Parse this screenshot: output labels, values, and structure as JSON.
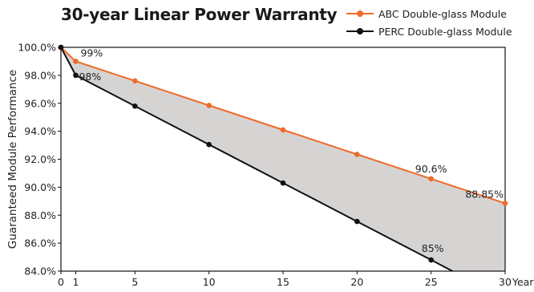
{
  "chart_data": {
    "type": "line",
    "title": "30-year Linear Power Warranty",
    "ylabel": "Guaranteed Module Performance",
    "xlabel": "Year",
    "xlim": [
      0,
      30
    ],
    "ylim": [
      84.0,
      100.0
    ],
    "x_ticks": [
      "0",
      "1",
      "5",
      "10",
      "15",
      "20",
      "25",
      "30"
    ],
    "y_ticks": [
      "84.0%",
      "86.0%",
      "88.0%",
      "90.0%",
      "92.0%",
      "94.0%",
      "96.0%",
      "98.0%",
      "100.0%"
    ],
    "x_tick_values": [
      0,
      1,
      5,
      10,
      15,
      20,
      25,
      30
    ],
    "y_tick_values": [
      84,
      86,
      88,
      90,
      92,
      94,
      96,
      98,
      100
    ],
    "grid": false,
    "legend_position": "top-right",
    "shaded_between_series": true,
    "shade_color": "#d6d3d3",
    "series": [
      {
        "name": "ABC Double-glass Module",
        "color": "#ef6b2a",
        "x": [
          0,
          1,
          5,
          10,
          15,
          20,
          25,
          30
        ],
        "values": [
          100.0,
          99.0,
          97.6,
          95.85,
          94.1,
          92.35,
          90.6,
          88.85
        ]
      },
      {
        "name": "PERC Double-glass Module",
        "color": "#111111",
        "x": [
          0,
          1,
          5,
          10,
          15,
          20,
          25,
          26.9
        ],
        "values": [
          100.0,
          98.0,
          95.8,
          93.05,
          90.3,
          87.55,
          84.8,
          83.75
        ]
      }
    ],
    "annotations": [
      {
        "text": "99%",
        "x": 1,
        "y": 99.0,
        "series": 0
      },
      {
        "text": "98%",
        "x": 1,
        "y": 98.0,
        "series": 1
      },
      {
        "text": "90.6%",
        "x": 25,
        "y": 90.6,
        "series": 0
      },
      {
        "text": "88.85%",
        "x": 30,
        "y": 88.85,
        "series": 0
      },
      {
        "text": "85%",
        "x": 25,
        "y": 84.8,
        "series": 1
      }
    ]
  }
}
